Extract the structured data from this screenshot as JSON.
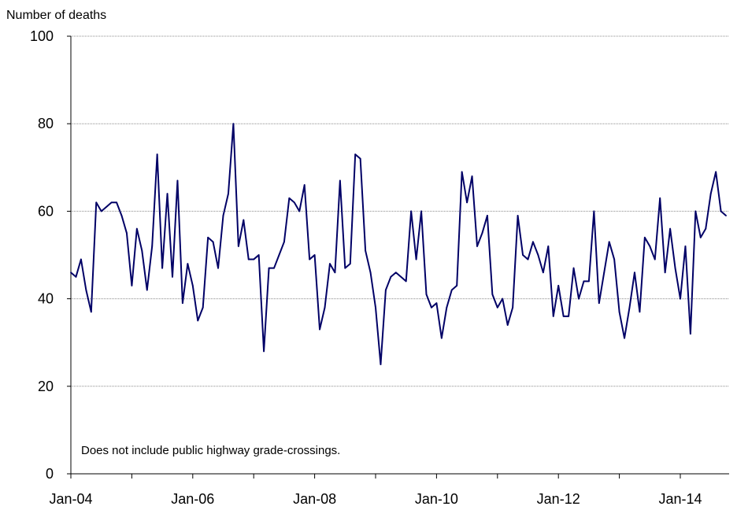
{
  "chart_data": {
    "type": "line",
    "ylabel": "Number of deaths",
    "ylim": [
      0,
      100
    ],
    "y_ticks": [
      "0",
      "20",
      "40",
      "60",
      "80",
      "100"
    ],
    "x_ticks": [
      "Jan-04",
      "Jan-06",
      "Jan-08",
      "Jan-10",
      "Jan-12",
      "Jan-14"
    ],
    "x_start": "Jan-04",
    "x_frequency": "monthly",
    "grid": "horizontal",
    "note": "Does not include public highway grade-crossings.",
    "line_color": "#000066",
    "series": [
      {
        "values": [
          46,
          45,
          49,
          42,
          37,
          62,
          60,
          61,
          62,
          62,
          59,
          55,
          43,
          56,
          51,
          42,
          52,
          73,
          47,
          64,
          45,
          67,
          39,
          48,
          43,
          35,
          38,
          54,
          53,
          47,
          59,
          64,
          80,
          52,
          58,
          49,
          49,
          50,
          28,
          47,
          47,
          50,
          53,
          63,
          62,
          60,
          66,
          49,
          50,
          33,
          38,
          48,
          46,
          67,
          47,
          48,
          73,
          72,
          51,
          46,
          38,
          25,
          42,
          45,
          46,
          45,
          44,
          60,
          49,
          60,
          41,
          38,
          39,
          31,
          38,
          42,
          43,
          69,
          62,
          68,
          52,
          55,
          59,
          41,
          38,
          40,
          34,
          38,
          59,
          50,
          49,
          53,
          50,
          46,
          52,
          36,
          43,
          36,
          36,
          47,
          40,
          44,
          44,
          60,
          39,
          46,
          53,
          49,
          37,
          31,
          38,
          46,
          37,
          54,
          52,
          49,
          63,
          46,
          56,
          47,
          40,
          52,
          32,
          60,
          54,
          56,
          64,
          69,
          60,
          59
        ]
      }
    ]
  }
}
